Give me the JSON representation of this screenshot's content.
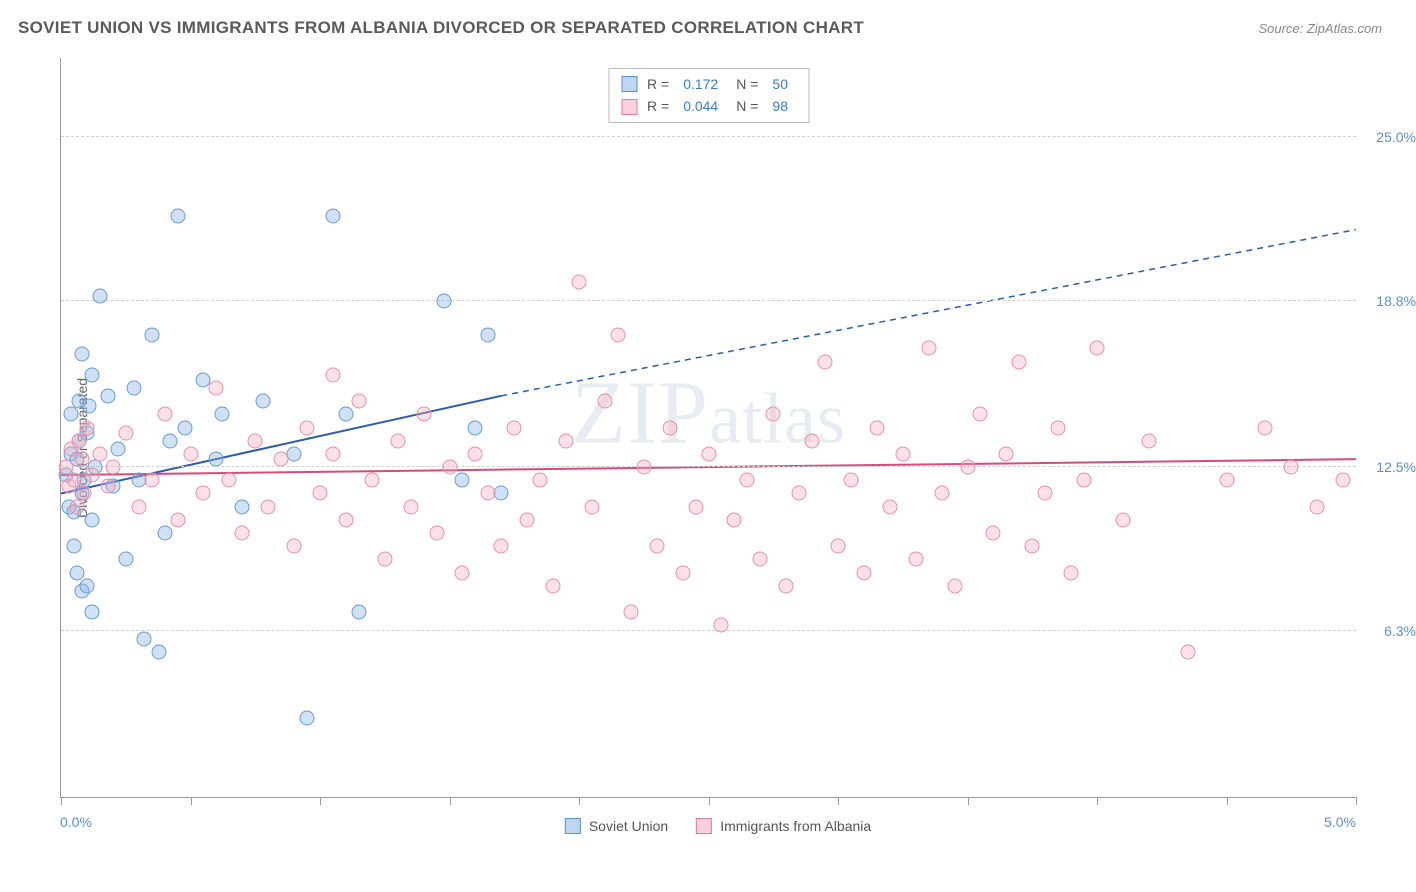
{
  "title": "SOVIET UNION VS IMMIGRANTS FROM ALBANIA DIVORCED OR SEPARATED CORRELATION CHART",
  "source": "Source: ZipAtlas.com",
  "watermark": "ZIPatlas",
  "y_axis_label": "Divorced or Separated",
  "chart": {
    "type": "scatter",
    "xlim": [
      0.0,
      5.0
    ],
    "ylim": [
      0.0,
      28.0
    ],
    "x_ticks": [
      0.0,
      0.5,
      1.0,
      1.5,
      2.0,
      2.5,
      3.0,
      3.5,
      4.0,
      4.5,
      5.0
    ],
    "x_tick_labels": {
      "0": "0.0%",
      "5": "5.0%"
    },
    "y_gridlines": [
      6.3,
      12.5,
      18.8,
      25.0
    ],
    "y_tick_labels": [
      "6.3%",
      "12.5%",
      "18.8%",
      "25.0%"
    ],
    "background_color": "#ffffff",
    "grid_color": "#d0d0d0",
    "axis_color": "#999999",
    "marker_radius": 7.5,
    "series": [
      {
        "name": "Soviet Union",
        "color_fill": "rgba(137,180,230,0.4)",
        "color_stroke": "#6a9bd1",
        "R": "0.172",
        "N": "50",
        "trend": {
          "x1": 0.0,
          "y1": 11.5,
          "x2_solid": 1.7,
          "y2_solid": 15.2,
          "x2_dash": 5.0,
          "y2_dash": 21.5,
          "color": "#2a5db0",
          "width": 2
        },
        "points": [
          [
            0.02,
            12.2
          ],
          [
            0.03,
            11.0
          ],
          [
            0.04,
            13.0
          ],
          [
            0.04,
            14.5
          ],
          [
            0.05,
            9.5
          ],
          [
            0.05,
            10.8
          ],
          [
            0.06,
            12.8
          ],
          [
            0.06,
            8.5
          ],
          [
            0.07,
            13.5
          ],
          [
            0.07,
            15.0
          ],
          [
            0.08,
            11.5
          ],
          [
            0.08,
            7.8
          ],
          [
            0.09,
            12.0
          ],
          [
            0.1,
            13.8
          ],
          [
            0.1,
            8.0
          ],
          [
            0.11,
            14.8
          ],
          [
            0.12,
            10.5
          ],
          [
            0.12,
            16.0
          ],
          [
            0.13,
            12.5
          ],
          [
            0.15,
            19.0
          ],
          [
            0.18,
            15.2
          ],
          [
            0.2,
            11.8
          ],
          [
            0.22,
            13.2
          ],
          [
            0.25,
            9.0
          ],
          [
            0.28,
            15.5
          ],
          [
            0.12,
            7.0
          ],
          [
            0.3,
            12.0
          ],
          [
            0.35,
            17.5
          ],
          [
            0.08,
            16.8
          ],
          [
            0.4,
            10.0
          ],
          [
            0.42,
            13.5
          ],
          [
            0.45,
            22.0
          ],
          [
            0.48,
            14.0
          ],
          [
            0.32,
            6.0
          ],
          [
            0.55,
            15.8
          ],
          [
            0.6,
            12.8
          ],
          [
            0.62,
            14.5
          ],
          [
            0.7,
            11.0
          ],
          [
            0.78,
            15.0
          ],
          [
            0.38,
            5.5
          ],
          [
            0.9,
            13.0
          ],
          [
            0.95,
            3.0
          ],
          [
            1.05,
            22.0
          ],
          [
            1.1,
            14.5
          ],
          [
            1.15,
            7.0
          ],
          [
            1.48,
            18.8
          ],
          [
            1.55,
            12.0
          ],
          [
            1.6,
            14.0
          ],
          [
            1.65,
            17.5
          ],
          [
            1.7,
            11.5
          ]
        ]
      },
      {
        "name": "Immigrants from Albania",
        "color_fill": "rgba(245,170,190,0.35)",
        "color_stroke": "#e890a8",
        "R": "0.044",
        "N": "98",
        "trend": {
          "x1": 0.0,
          "y1": 12.2,
          "x2_solid": 5.0,
          "y2_solid": 12.8,
          "x2_dash": 5.0,
          "y2_dash": 12.8,
          "color": "#d84a78",
          "width": 2
        },
        "points": [
          [
            0.02,
            12.5
          ],
          [
            0.03,
            11.8
          ],
          [
            0.04,
            13.2
          ],
          [
            0.05,
            12.0
          ],
          [
            0.06,
            11.0
          ],
          [
            0.07,
            13.5
          ],
          [
            0.08,
            12.8
          ],
          [
            0.09,
            11.5
          ],
          [
            0.1,
            14.0
          ],
          [
            0.12,
            12.2
          ],
          [
            0.15,
            13.0
          ],
          [
            0.18,
            11.8
          ],
          [
            0.2,
            12.5
          ],
          [
            0.25,
            13.8
          ],
          [
            0.3,
            11.0
          ],
          [
            0.35,
            12.0
          ],
          [
            0.4,
            14.5
          ],
          [
            0.45,
            10.5
          ],
          [
            0.5,
            13.0
          ],
          [
            0.55,
            11.5
          ],
          [
            0.6,
            15.5
          ],
          [
            0.65,
            12.0
          ],
          [
            0.7,
            10.0
          ],
          [
            0.75,
            13.5
          ],
          [
            0.8,
            11.0
          ],
          [
            0.85,
            12.8
          ],
          [
            0.9,
            9.5
          ],
          [
            0.95,
            14.0
          ],
          [
            1.0,
            11.5
          ],
          [
            1.05,
            13.0
          ],
          [
            1.1,
            10.5
          ],
          [
            1.15,
            15.0
          ],
          [
            1.2,
            12.0
          ],
          [
            1.25,
            9.0
          ],
          [
            1.3,
            13.5
          ],
          [
            1.35,
            11.0
          ],
          [
            1.4,
            14.5
          ],
          [
            1.45,
            10.0
          ],
          [
            1.5,
            12.5
          ],
          [
            1.55,
            8.5
          ],
          [
            1.6,
            13.0
          ],
          [
            1.65,
            11.5
          ],
          [
            1.7,
            9.5
          ],
          [
            1.75,
            14.0
          ],
          [
            1.8,
            10.5
          ],
          [
            1.85,
            12.0
          ],
          [
            1.9,
            8.0
          ],
          [
            1.95,
            13.5
          ],
          [
            2.0,
            19.5
          ],
          [
            2.05,
            11.0
          ],
          [
            2.1,
            15.0
          ],
          [
            2.15,
            17.5
          ],
          [
            2.2,
            7.0
          ],
          [
            2.25,
            12.5
          ],
          [
            2.3,
            9.5
          ],
          [
            2.35,
            14.0
          ],
          [
            2.4,
            8.5
          ],
          [
            2.45,
            11.0
          ],
          [
            2.5,
            13.0
          ],
          [
            2.55,
            6.5
          ],
          [
            2.6,
            10.5
          ],
          [
            2.65,
            12.0
          ],
          [
            2.7,
            9.0
          ],
          [
            2.75,
            14.5
          ],
          [
            2.8,
            8.0
          ],
          [
            2.85,
            11.5
          ],
          [
            2.9,
            13.5
          ],
          [
            2.95,
            16.5
          ],
          [
            3.0,
            9.5
          ],
          [
            3.05,
            12.0
          ],
          [
            3.1,
            8.5
          ],
          [
            3.15,
            14.0
          ],
          [
            3.2,
            11.0
          ],
          [
            3.25,
            13.0
          ],
          [
            3.3,
            9.0
          ],
          [
            3.35,
            17.0
          ],
          [
            3.4,
            11.5
          ],
          [
            3.45,
            8.0
          ],
          [
            3.5,
            12.5
          ],
          [
            3.55,
            14.5
          ],
          [
            3.6,
            10.0
          ],
          [
            3.65,
            13.0
          ],
          [
            3.7,
            16.5
          ],
          [
            3.75,
            9.5
          ],
          [
            3.8,
            11.5
          ],
          [
            3.85,
            14.0
          ],
          [
            3.9,
            8.5
          ],
          [
            3.95,
            12.0
          ],
          [
            4.0,
            17.0
          ],
          [
            4.1,
            10.5
          ],
          [
            4.2,
            13.5
          ],
          [
            4.35,
            5.5
          ],
          [
            4.5,
            12.0
          ],
          [
            4.65,
            14.0
          ],
          [
            4.75,
            12.5
          ],
          [
            4.85,
            11.0
          ],
          [
            4.95,
            12.0
          ],
          [
            1.05,
            16.0
          ]
        ]
      }
    ]
  },
  "legend_bottom": [
    {
      "swatch": "blue",
      "label": "Soviet Union"
    },
    {
      "swatch": "pink",
      "label": "Immigrants from Albania"
    }
  ]
}
